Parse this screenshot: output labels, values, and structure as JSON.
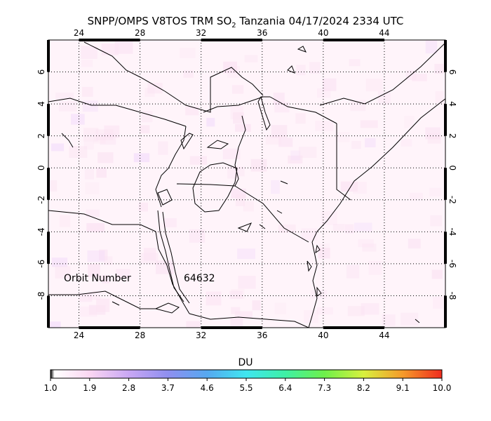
{
  "title": {
    "prefix": "SNPP/OMPS V8TOS TRM SO",
    "subscript": "2",
    "suffix": " Tanzania 04/17/2024 2334 UTC"
  },
  "map": {
    "lon_range": [
      22,
      48
    ],
    "lat_range": [
      -10,
      8
    ],
    "lon_ticks": [
      24,
      28,
      32,
      36,
      40,
      44
    ],
    "lat_ticks": [
      6,
      4,
      2,
      0,
      -2,
      -4,
      -6,
      -8
    ],
    "lon_tick_labels": [
      "24",
      "28",
      "32",
      "36",
      "40",
      "44"
    ],
    "lat_tick_labels": [
      "6",
      "4",
      "2",
      "0",
      "-2",
      "-4",
      "-6",
      "-8"
    ],
    "grid": "dotted",
    "background_color": "#fff4fa",
    "coast_color": "#000000"
  },
  "orbit": {
    "label": "Orbit Number",
    "number": "64632"
  },
  "colorbar": {
    "unit": "DU",
    "range": [
      1.0,
      10.0
    ],
    "tick_labels": [
      "1.0",
      "1.9",
      "2.8",
      "3.7",
      "4.6",
      "5.5",
      "6.4",
      "7.3",
      "8.2",
      "9.1",
      "10.0"
    ],
    "colors": [
      "#ffffff",
      "#fbd6f2",
      "#c9a7f4",
      "#8f8ff0",
      "#56a8f0",
      "#3fe6f0",
      "#3ef0a5",
      "#6ef04a",
      "#d8f03e",
      "#f59a2a",
      "#f02c1e"
    ]
  }
}
